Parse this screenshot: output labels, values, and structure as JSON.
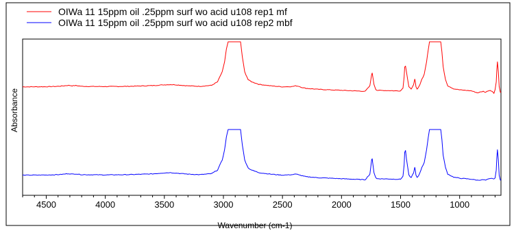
{
  "chart_data": {
    "type": "line",
    "xlabel": "Wavenumber (cm-1)",
    "ylabel": "Absorbance",
    "xlim": [
      4700,
      650
    ],
    "x_reversed": true,
    "y_ticks_labeled": false,
    "grid": false,
    "legend_position": "top",
    "x_ticks": [
      "4500",
      "4000",
      "3500",
      "3000",
      "2500",
      "2000",
      "1500",
      "1000"
    ],
    "series": [
      {
        "name": "OIWa 11 15ppm oil .25ppm surf wo acid u108 rep1 mf",
        "color": "#ff0000",
        "x": [
          4700,
          4500,
          4400,
          4350,
          4310,
          4280,
          4250,
          4200,
          4000,
          3800,
          3600,
          3500,
          3450,
          3400,
          3300,
          3200,
          3100,
          3050,
          3010,
          2990,
          2975,
          2960,
          2935,
          2900,
          2870,
          2855,
          2840,
          2820,
          2790,
          2760,
          2700,
          2600,
          2500,
          2420,
          2390,
          2360,
          2340,
          2300,
          2200,
          2100,
          2000,
          1900,
          1800,
          1760,
          1745,
          1740,
          1735,
          1725,
          1710,
          1700,
          1600,
          1550,
          1500,
          1480,
          1470,
          1465,
          1458,
          1450,
          1430,
          1410,
          1390,
          1380,
          1375,
          1370,
          1360,
          1345,
          1320,
          1300,
          1280,
          1265,
          1255,
          1245,
          1200,
          1160,
          1150,
          1140,
          1120,
          1100,
          1050,
          1000,
          950,
          900,
          850,
          800,
          780,
          760,
          740,
          725,
          710,
          700,
          690,
          685,
          680,
          672,
          665,
          655,
          650
        ],
        "y": [
          0.1,
          0.102,
          0.11,
          0.12,
          0.13,
          0.12,
          0.125,
          0.11,
          0.105,
          0.11,
          0.125,
          0.14,
          0.145,
          0.14,
          0.12,
          0.11,
          0.13,
          0.2,
          0.4,
          0.6,
          0.85,
          1.0,
          1.0,
          1.0,
          1.0,
          1.0,
          0.7,
          0.4,
          0.24,
          0.2,
          0.15,
          0.12,
          0.1,
          0.105,
          0.12,
          0.11,
          0.09,
          0.07,
          0.05,
          0.04,
          0.03,
          0.02,
          0.01,
          0.12,
          0.35,
          0.37,
          0.3,
          0.15,
          0.05,
          0.03,
          0.025,
          0.02,
          0.02,
          0.08,
          0.3,
          0.5,
          0.52,
          0.4,
          0.1,
          0.05,
          0.15,
          0.25,
          0.2,
          0.1,
          0.05,
          0.1,
          0.25,
          0.35,
          0.6,
          0.85,
          1.0,
          1.0,
          1.0,
          1.0,
          0.8,
          0.5,
          0.25,
          0.12,
          0.06,
          0.04,
          0.03,
          0.02,
          -0.02,
          0.01,
          -0.01,
          0.02,
          0.03,
          0.01,
          -0.03,
          0.05,
          0.2,
          0.45,
          0.6,
          0.4,
          0.1,
          -0.01,
          0.0
        ]
      },
      {
        "name": "OIWa 11 15ppm oil .25ppm surf wo acid u108 rep2 mbf",
        "color": "#0000ff",
        "x": [
          4700,
          4500,
          4400,
          4350,
          4310,
          4280,
          4250,
          4200,
          4000,
          3800,
          3600,
          3500,
          3450,
          3400,
          3300,
          3200,
          3100,
          3050,
          3010,
          2990,
          2975,
          2960,
          2935,
          2900,
          2870,
          2855,
          2840,
          2820,
          2790,
          2760,
          2700,
          2600,
          2500,
          2420,
          2390,
          2360,
          2340,
          2300,
          2200,
          2100,
          2000,
          1900,
          1800,
          1760,
          1745,
          1740,
          1735,
          1725,
          1710,
          1700,
          1600,
          1550,
          1500,
          1480,
          1470,
          1465,
          1458,
          1450,
          1430,
          1410,
          1390,
          1380,
          1375,
          1370,
          1360,
          1345,
          1320,
          1300,
          1280,
          1265,
          1255,
          1245,
          1200,
          1160,
          1150,
          1140,
          1120,
          1100,
          1050,
          1000,
          950,
          900,
          850,
          800,
          780,
          760,
          740,
          725,
          710,
          700,
          690,
          685,
          680,
          672,
          665,
          655,
          650
        ],
        "y": [
          0.1,
          0.103,
          0.11,
          0.12,
          0.13,
          0.12,
          0.125,
          0.11,
          0.105,
          0.11,
          0.125,
          0.145,
          0.15,
          0.14,
          0.12,
          0.11,
          0.13,
          0.2,
          0.4,
          0.6,
          0.85,
          1.0,
          1.0,
          1.0,
          1.0,
          1.0,
          0.7,
          0.4,
          0.24,
          0.2,
          0.15,
          0.12,
          0.1,
          0.11,
          0.12,
          0.11,
          0.09,
          0.07,
          0.05,
          0.04,
          0.03,
          0.02,
          0.01,
          0.12,
          0.4,
          0.42,
          0.33,
          0.15,
          0.05,
          0.03,
          0.025,
          0.02,
          0.02,
          0.08,
          0.3,
          0.55,
          0.58,
          0.42,
          0.1,
          0.05,
          0.15,
          0.25,
          0.2,
          0.1,
          0.05,
          0.1,
          0.25,
          0.35,
          0.6,
          0.85,
          1.0,
          1.0,
          1.0,
          1.0,
          0.8,
          0.5,
          0.25,
          0.12,
          0.06,
          0.04,
          0.03,
          0.02,
          0.0,
          0.01,
          0.0,
          0.02,
          0.03,
          0.04,
          0.02,
          0.05,
          0.2,
          0.45,
          0.6,
          0.4,
          0.1,
          0.0,
          0.01
        ]
      }
    ]
  }
}
